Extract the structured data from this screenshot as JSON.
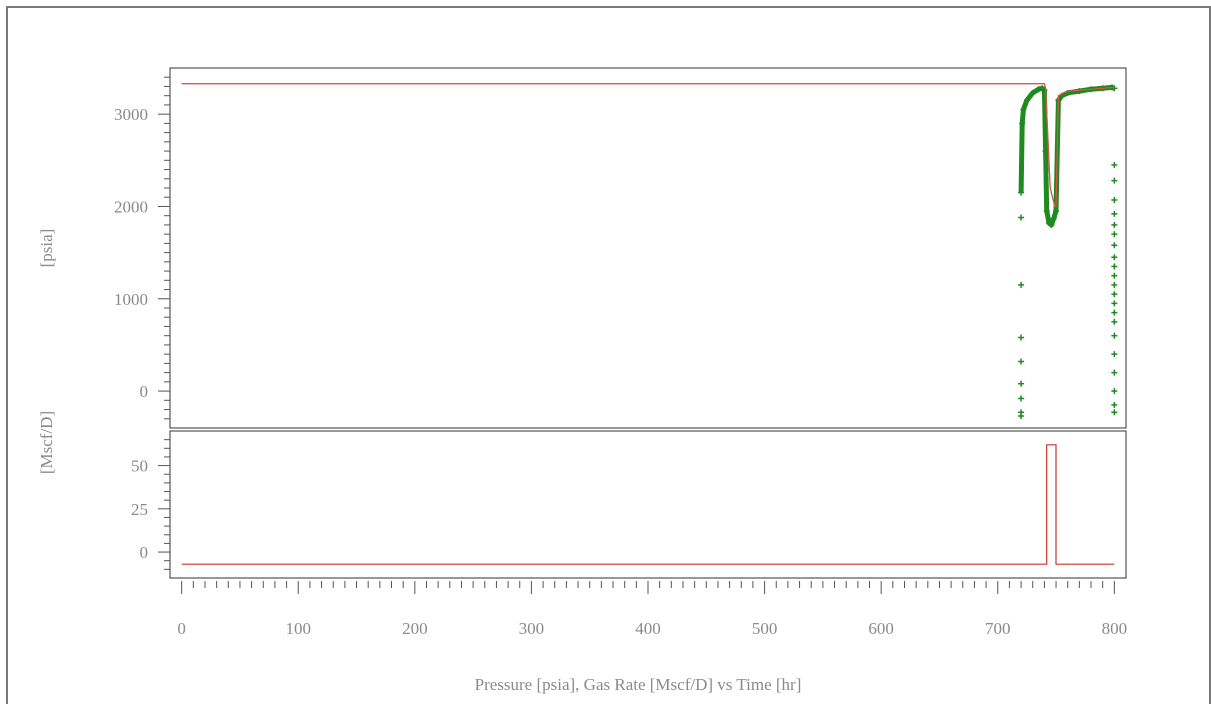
{
  "chart_data": {
    "type": "line",
    "title": "Pressure [psia], Gas Rate [Mscf/D] vs Time [hr]",
    "xlabel": "",
    "x_ticks": [
      0,
      100,
      200,
      300,
      400,
      500,
      600,
      700,
      800
    ],
    "xlim": [
      -10,
      810
    ],
    "grid": false,
    "panels": [
      {
        "ylabel": "[psia]",
        "ylim": [
          -400,
          3500
        ],
        "y_ticks": [
          0,
          1000,
          2000,
          3000
        ],
        "series": [
          {
            "kind": "line",
            "color": "#d9534f",
            "x": [
              0,
              740,
              741,
              745,
              749,
              750,
              752,
              760,
              780,
              800
            ],
            "y": [
              3330,
              3330,
              3280,
              2200,
              2000,
              2000,
              3200,
              3250,
              3270,
              3290
            ]
          },
          {
            "kind": "markers",
            "color": "#1f8a1f",
            "x": [
              720,
              720,
              720,
              720,
              720,
              720,
              720,
              720,
              720,
              721,
              722,
              725,
              730,
              735,
              738,
              740,
              741,
              742,
              744,
              746,
              748,
              750,
              752,
              755,
              760,
              770,
              780,
              790,
              798,
              800,
              800,
              800,
              800,
              800,
              800,
              800,
              800,
              800,
              800,
              800,
              800,
              800,
              800,
              800,
              800,
              800,
              800,
              800,
              800,
              800,
              800
            ],
            "y": [
              -270,
              -230,
              -80,
              80,
              320,
              580,
              1150,
              1880,
              2150,
              2900,
              3050,
              3150,
              3230,
              3270,
              3280,
              3260,
              2600,
              1950,
              1820,
              1800,
              1870,
              1950,
              3150,
              3200,
              3230,
              3250,
              3270,
              3280,
              3290,
              3280,
              2450,
              2280,
              2070,
              1920,
              1800,
              1700,
              1580,
              1450,
              1350,
              1250,
              1150,
              1050,
              950,
              850,
              750,
              600,
              400,
              200,
              0,
              -150,
              -230
            ]
          }
        ]
      },
      {
        "ylabel": "[Mscf/D]",
        "ylim": [
          -15,
          70
        ],
        "y_ticks": [
          0,
          25,
          50
        ],
        "series": [
          {
            "kind": "step",
            "color": "#c0392b",
            "x": [
              0,
              742,
              742,
              750,
              750,
              800
            ],
            "y": [
              -7,
              -7,
              62,
              62,
              -7,
              -7
            ]
          }
        ]
      }
    ]
  }
}
